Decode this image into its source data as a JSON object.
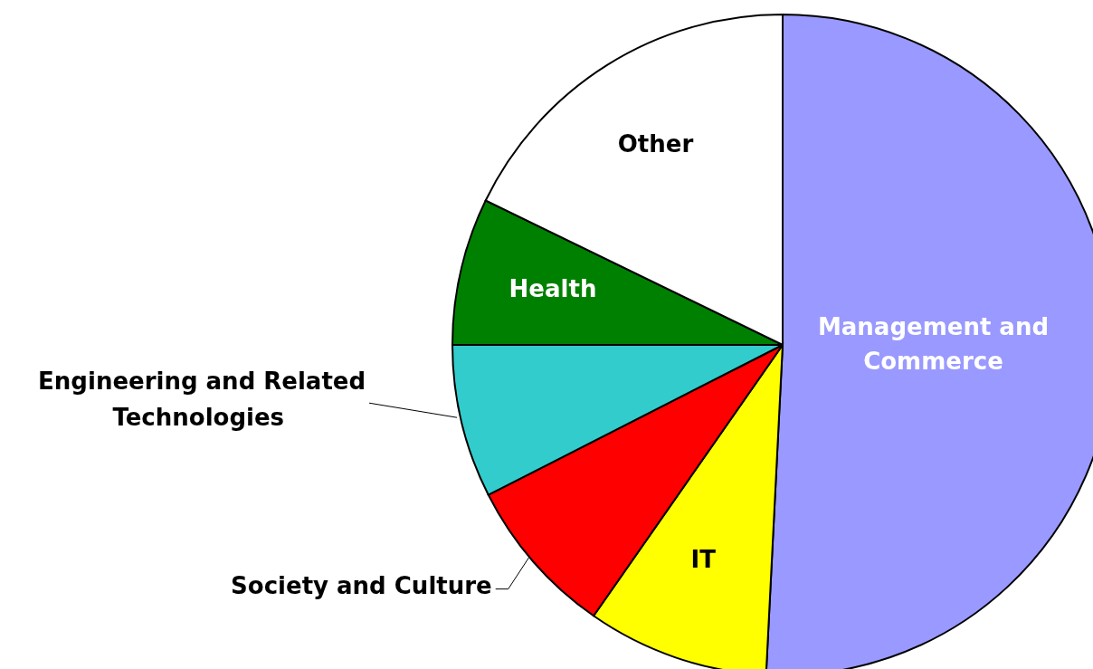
{
  "chart_data": {
    "type": "pie",
    "categories": [
      "Management and Commerce",
      "IT",
      "Society and Culture",
      "Engineering and Related Technologies",
      "Health",
      "Other"
    ],
    "values": [
      50.8,
      8.9,
      7.8,
      7.5,
      7.2,
      17.8
    ],
    "colors": [
      "#9999ff",
      "#ffff00",
      "#ff0000",
      "#33cccc",
      "#008000",
      "#ffffff"
    ],
    "legend": false
  }
}
